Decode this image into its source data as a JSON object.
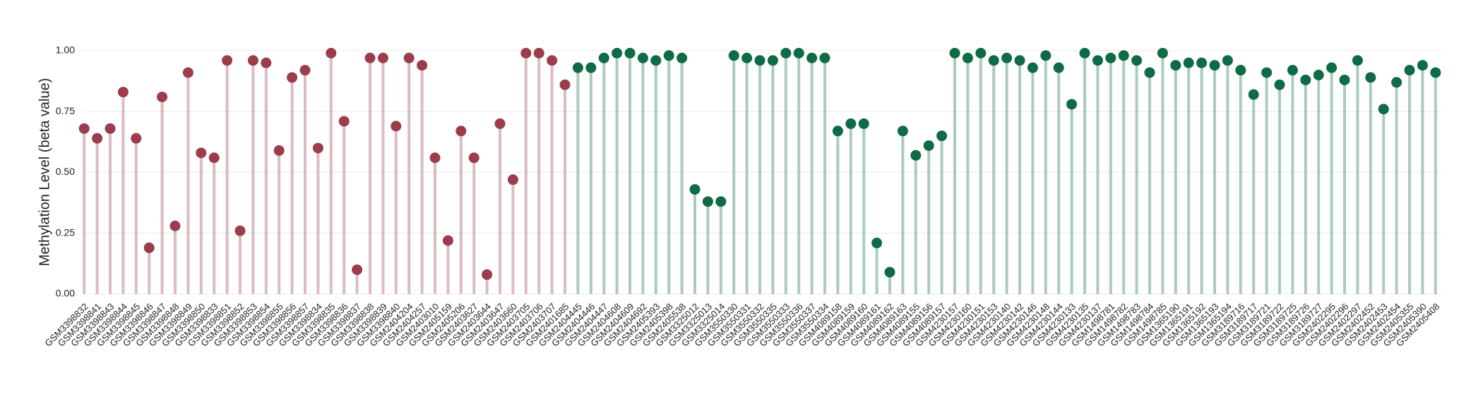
{
  "chart_data": {
    "type": "lollipop",
    "y_label": "Methylation Level (beta value)",
    "categories": [
      "GSM3398832",
      "GSM3398841",
      "GSM3398843",
      "GSM3398844",
      "GSM3398845",
      "GSM3398846",
      "GSM3398847",
      "GSM3398848",
      "GSM3398849",
      "GSM3398850",
      "GSM3398833",
      "GSM3398851",
      "GSM3398852",
      "GSM3398853",
      "GSM3398854",
      "GSM3398855",
      "GSM3398856",
      "GSM3398857",
      "GSM3398834",
      "GSM3398835",
      "GSM3398836",
      "GSM3398837",
      "GSM3398838",
      "GSM3398839",
      "GSM3398840",
      "GSM2404204",
      "GSM2404257",
      "GSM2403010",
      "GSM2405159",
      "GSM2405206",
      "GSM2403627",
      "GSM2403644",
      "GSM2403647",
      "GSM2403660",
      "GSM2403705",
      "GSM2403706",
      "GSM2403707",
      "GSM2401685",
      "GSM2404445",
      "GSM2404446",
      "GSM2404447",
      "GSM2404608",
      "GSM2404609",
      "GSM2404692",
      "GSM2405393",
      "GSM2405398",
      "GSM2405538",
      "GSM3325012",
      "GSM3325013",
      "GSM3325014",
      "GSM3550330",
      "GSM3550331",
      "GSM3550332",
      "GSM3550335",
      "GSM3550333",
      "GSM3550336",
      "GSM3550337",
      "GSM3550334",
      "GSM4089158",
      "GSM4089159",
      "GSM4089160",
      "GSM4089161",
      "GSM4089162",
      "GSM4089163",
      "GSM4089155",
      "GSM4089156",
      "GSM4089157",
      "GSM4230157",
      "GSM4230160",
      "GSM4230151",
      "GSM4230153",
      "GSM4230140",
      "GSM4230142",
      "GSM4230146",
      "GSM4230148",
      "GSM4230144",
      "GSM4230133",
      "GSM4230135",
      "GSM4230137",
      "GSM1498781",
      "GSM1498782",
      "GSM1498783",
      "GSM1498784",
      "GSM1498785",
      "GSM1365190",
      "GSM1365191",
      "GSM1365192",
      "GSM1365193",
      "GSM1365194",
      "GSM3189716",
      "GSM3189717",
      "GSM3189721",
      "GSM3189722",
      "GSM3189725",
      "GSM3189726",
      "GSM3189727",
      "GSM2402295",
      "GSM2402296",
      "GSM2402297",
      "GSM2402452",
      "GSM2402453",
      "GSM2402454",
      "GSM2405355",
      "GSM2405390",
      "GSM2405408"
    ],
    "values": [
      0.68,
      0.64,
      0.68,
      0.83,
      0.64,
      0.19,
      0.81,
      0.28,
      0.91,
      0.58,
      0.56,
      0.96,
      0.26,
      0.96,
      0.95,
      0.59,
      0.89,
      0.92,
      0.6,
      0.99,
      0.71,
      0.1,
      0.97,
      0.97,
      0.69,
      0.97,
      0.94,
      0.56,
      0.22,
      0.67,
      0.56,
      0.08,
      0.7,
      0.47,
      0.99,
      0.99,
      0.96,
      0.86,
      0.93,
      0.93,
      0.97,
      0.99,
      0.99,
      0.97,
      0.96,
      0.98,
      0.97,
      0.43,
      0.38,
      0.38,
      0.98,
      0.97,
      0.96,
      0.96,
      0.99,
      0.99,
      0.97,
      0.97,
      0.67,
      0.7,
      0.7,
      0.21,
      0.09,
      0.67,
      0.57,
      0.61,
      0.65,
      0.99,
      0.97,
      0.99,
      0.96,
      0.97,
      0.96,
      0.93,
      0.98,
      0.93,
      0.78,
      0.99,
      0.96,
      0.97,
      0.98,
      0.96,
      0.91,
      0.99,
      0.94,
      0.95,
      0.95,
      0.94,
      0.96,
      0.92,
      0.82,
      0.91,
      0.86,
      0.92,
      0.88,
      0.9,
      0.93,
      0.88,
      0.96,
      0.89,
      0.76,
      0.87,
      0.92,
      0.94,
      0.91
    ],
    "colors": [
      "#9b3d4c",
      "#9b3d4c",
      "#9b3d4c",
      "#9b3d4c",
      "#9b3d4c",
      "#9b3d4c",
      "#9b3d4c",
      "#9b3d4c",
      "#9b3d4c",
      "#9b3d4c",
      "#9b3d4c",
      "#9b3d4c",
      "#9b3d4c",
      "#9b3d4c",
      "#9b3d4c",
      "#9b3d4c",
      "#9b3d4c",
      "#9b3d4c",
      "#9b3d4c",
      "#9b3d4c",
      "#9b3d4c",
      "#9b3d4c",
      "#9b3d4c",
      "#9b3d4c",
      "#9b3d4c",
      "#9b3d4c",
      "#9b3d4c",
      "#9b3d4c",
      "#9b3d4c",
      "#9b3d4c",
      "#9b3d4c",
      "#9b3d4c",
      "#9b3d4c",
      "#9b3d4c",
      "#9b3d4c",
      "#9b3d4c",
      "#9b3d4c",
      "#9b3d4c",
      "#0e6b45",
      "#0e6b45",
      "#0e6b45",
      "#0e6b45",
      "#0e6b45",
      "#0e6b45",
      "#0e6b45",
      "#0e6b45",
      "#0e6b45",
      "#0e6b45",
      "#0e6b45",
      "#0e6b45",
      "#0e6b45",
      "#0e6b45",
      "#0e6b45",
      "#0e6b45",
      "#0e6b45",
      "#0e6b45",
      "#0e6b45",
      "#0e6b45",
      "#0e6b45",
      "#0e6b45",
      "#0e6b45",
      "#0e6b45",
      "#0e6b45",
      "#0e6b45",
      "#0e6b45",
      "#0e6b45",
      "#0e6b45",
      "#0e6b45",
      "#0e6b45",
      "#0e6b45",
      "#0e6b45",
      "#0e6b45",
      "#0e6b45",
      "#0e6b45",
      "#0e6b45",
      "#0e6b45",
      "#0e6b45",
      "#0e6b45",
      "#0e6b45",
      "#0e6b45",
      "#0e6b45",
      "#0e6b45",
      "#0e6b45",
      "#0e6b45",
      "#0e6b45",
      "#0e6b45",
      "#0e6b45",
      "#0e6b45",
      "#0e6b45",
      "#0e6b45",
      "#0e6b45",
      "#0e6b45",
      "#0e6b45",
      "#0e6b45",
      "#0e6b45",
      "#0e6b45",
      "#0e6b45",
      "#0e6b45",
      "#0e6b45",
      "#0e6b45",
      "#0e6b45",
      "#0e6b45",
      "#0e6b45",
      "#0e6b45",
      "#0e6b45"
    ],
    "ylim": [
      0,
      1.02
    ],
    "yticks": [
      {
        "value": 0,
        "label": "0.00"
      },
      {
        "value": 0.25,
        "label": "0.25"
      },
      {
        "value": 0.5,
        "label": "0.50"
      },
      {
        "value": 0.75,
        "label": "0.75"
      },
      {
        "value": 1,
        "label": "1.00"
      }
    ],
    "grid": true
  }
}
